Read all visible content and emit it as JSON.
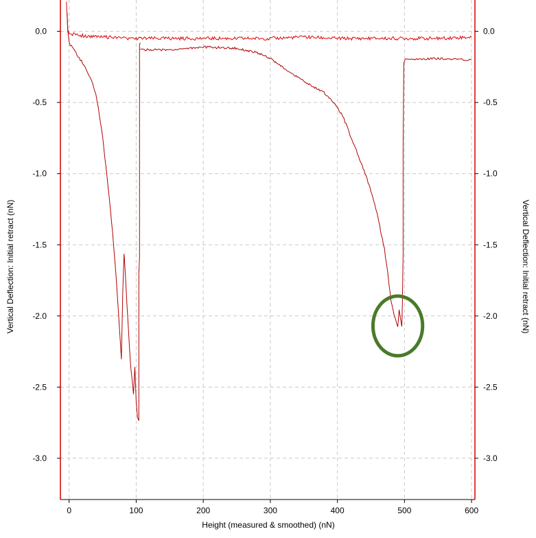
{
  "chart_data": {
    "type": "line",
    "title": "",
    "xlabel": "Height (measured & smoothed) (nN)",
    "ylabel_left": "Vertical Deflection: Initial retract (nN)",
    "ylabel_right": "Vertical Deflection: Initial retract (nN)",
    "xlim": [
      -13,
      605
    ],
    "ylim": [
      -3.29,
      0.22
    ],
    "xticks": [
      0,
      100,
      200,
      300,
      400,
      500,
      600
    ],
    "yticks": [
      0.0,
      -0.5,
      -1.0,
      -1.5,
      -2.0,
      -2.5,
      -3.0
    ],
    "xtick_labels": [
      "0",
      "100",
      "200",
      "300",
      "400",
      "500",
      "600"
    ],
    "ytick_labels": [
      "0.0",
      "-0.5",
      "-1.0",
      "-1.5",
      "-2.0",
      "-2.5",
      "-3.0"
    ],
    "grid": true,
    "series": [
      {
        "color": "#e00000",
        "x": [
          -4,
          -3,
          -2,
          0,
          2,
          5,
          10,
          15,
          20,
          30,
          40,
          60,
          80,
          100,
          150,
          200,
          250,
          300,
          350,
          400,
          450,
          500,
          550,
          600
        ],
        "y": [
          0.22,
          0.1,
          0.02,
          -0.02,
          -0.02,
          -0.02,
          -0.02,
          -0.03,
          -0.03,
          -0.04,
          -0.04,
          -0.04,
          -0.05,
          -0.05,
          -0.05,
          -0.05,
          -0.05,
          -0.05,
          -0.04,
          -0.05,
          -0.05,
          -0.05,
          -0.05,
          -0.04
        ]
      },
      {
        "color": "#b00000",
        "x": [
          -3,
          -2,
          0,
          5,
          10,
          15,
          20,
          25,
          30,
          35,
          40,
          45,
          50,
          55,
          60,
          65,
          70,
          75,
          78,
          80,
          82,
          84,
          86,
          88,
          90,
          92,
          94,
          96,
          98,
          100,
          102,
          104,
          104,
          105,
          105,
          106
        ],
        "y": [
          0.12,
          0.0,
          -0.08,
          -0.12,
          -0.15,
          -0.19,
          -0.22,
          -0.26,
          -0.31,
          -0.37,
          -0.45,
          -0.58,
          -0.75,
          -0.95,
          -1.17,
          -1.42,
          -1.72,
          -2.08,
          -2.3,
          -1.82,
          -1.57,
          -1.72,
          -1.9,
          -2.05,
          -2.22,
          -2.36,
          -2.45,
          -2.55,
          -2.36,
          -2.6,
          -2.72,
          -2.73,
          -1.7,
          -1.6,
          -0.1,
          -0.08
        ]
      },
      {
        "color": "#b00000",
        "x": [
          106,
          120,
          150,
          200,
          250,
          280,
          300,
          320,
          340,
          360,
          380,
          400,
          410,
          420,
          425,
          430,
          440,
          450,
          460,
          470,
          475,
          480,
          485,
          488,
          490,
          492,
          494,
          496,
          497,
          498,
          498,
          499,
          501,
          520,
          550,
          580,
          600
        ],
        "y": [
          -0.13,
          -0.13,
          -0.13,
          -0.11,
          -0.12,
          -0.15,
          -0.19,
          -0.26,
          -0.32,
          -0.38,
          -0.43,
          -0.53,
          -0.62,
          -0.74,
          -0.8,
          -0.86,
          -0.98,
          -1.12,
          -1.3,
          -1.53,
          -1.7,
          -1.89,
          -2.0,
          -2.05,
          -2.07,
          -1.95,
          -2.02,
          -2.08,
          -1.9,
          -1.55,
          -0.8,
          -0.22,
          -0.2,
          -0.2,
          -0.19,
          -0.2,
          -0.2
        ]
      }
    ],
    "annotations": [
      {
        "type": "ellipse",
        "color": "#4a7a2a",
        "cx": 490,
        "cy": -2.07,
        "rx": 37,
        "ry": 0.21
      }
    ]
  }
}
